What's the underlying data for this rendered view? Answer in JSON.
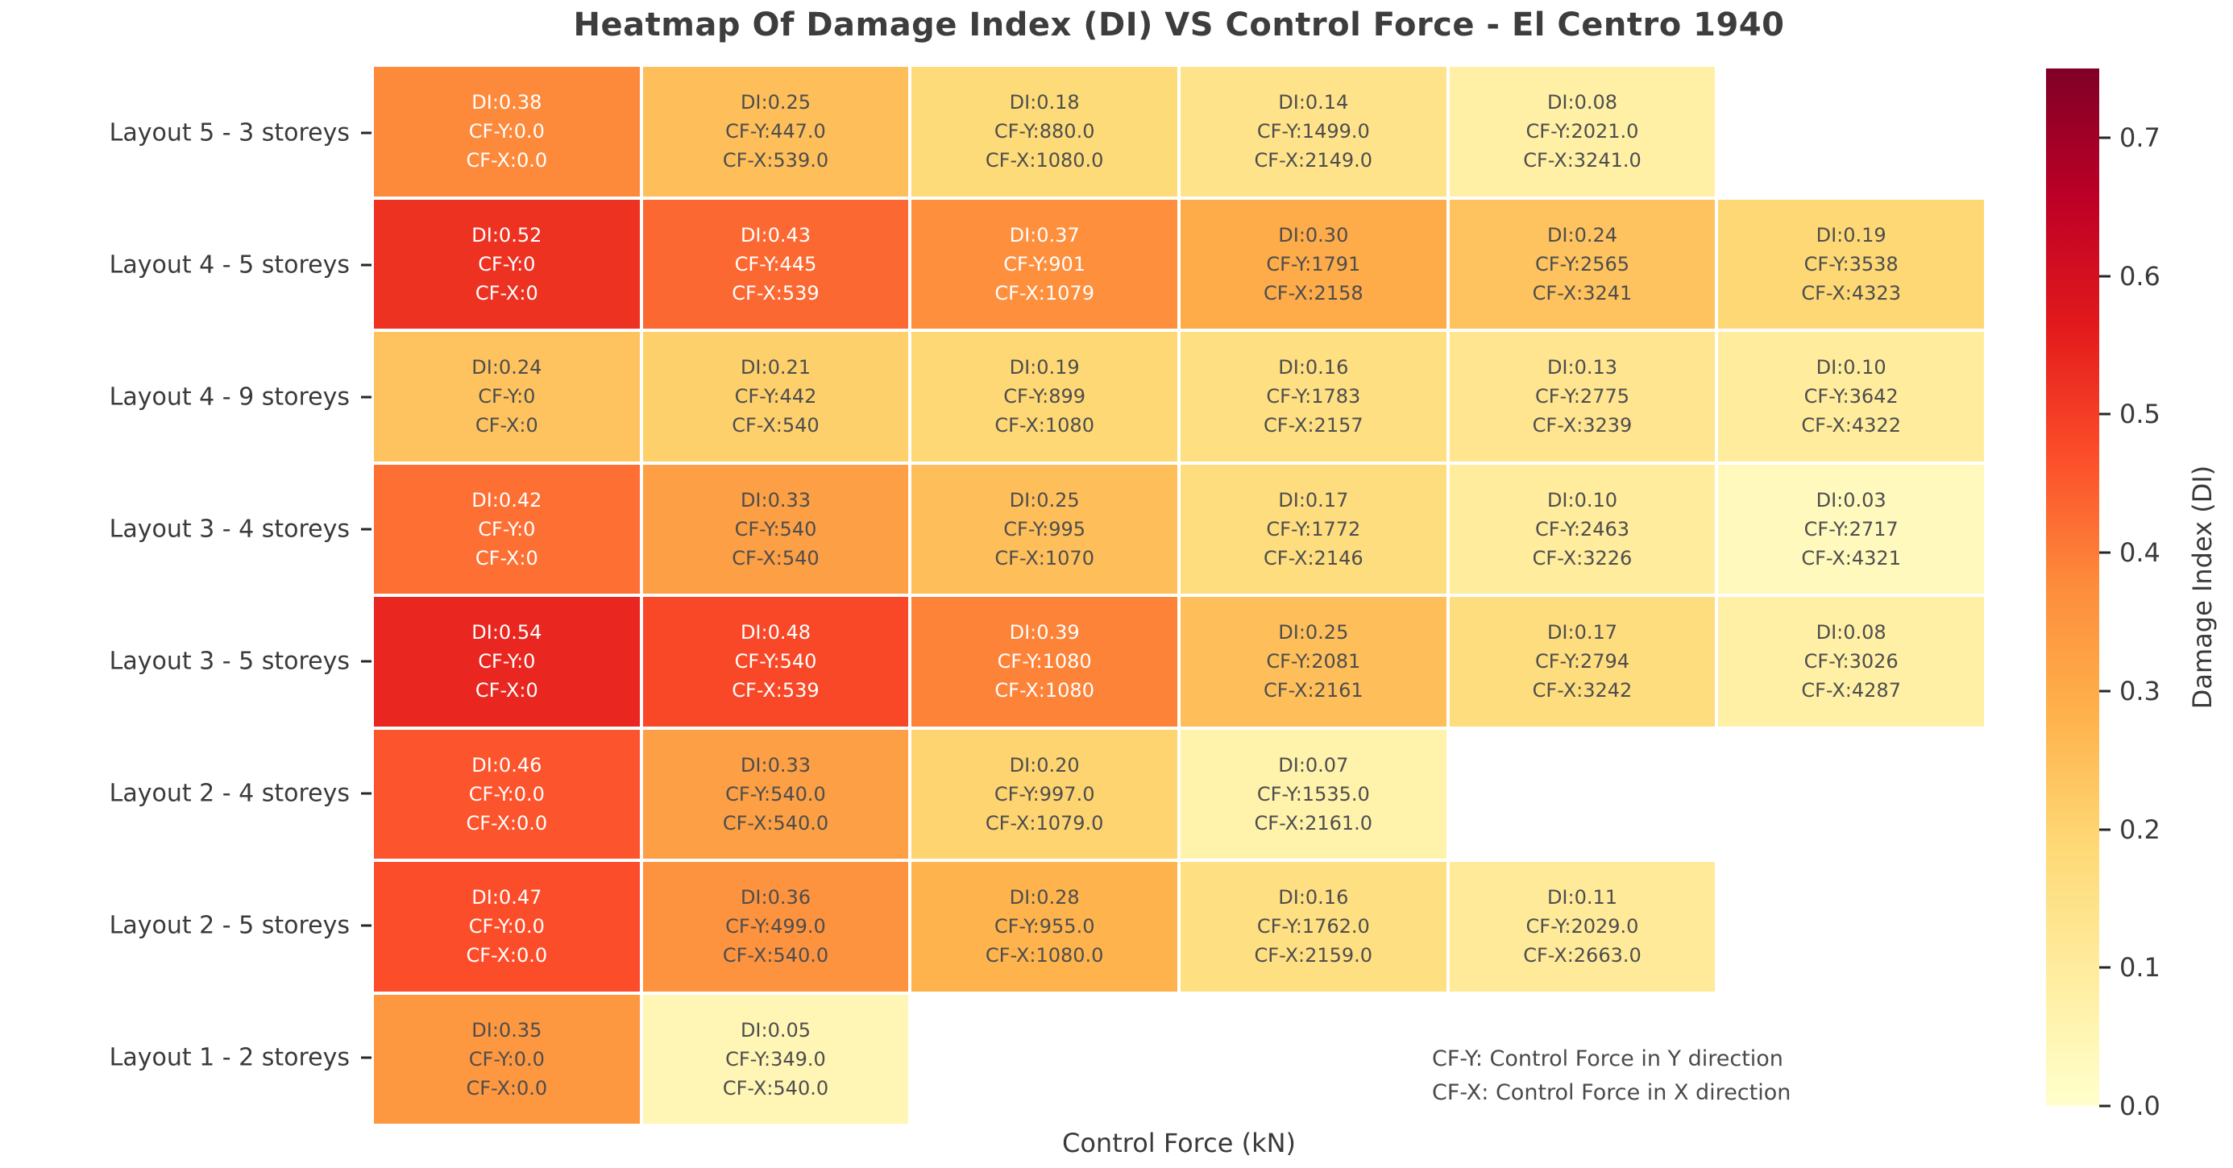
{
  "title": "Heatmap Of Damage Index (DI) VS Control Force - El Centro 1940",
  "axes": {
    "xlabel": "Control Force (kN)"
  },
  "annotation": {
    "lines": [
      "CF-Y: Control Force in Y direction",
      "CF-X: Control Force in X direction"
    ]
  },
  "colorbar": {
    "label": "Damage Index (DI)",
    "tick_labels": [
      "0.7",
      "0.6",
      "0.5",
      "0.4",
      "0.3",
      "0.2",
      "0.1",
      "0.0"
    ],
    "vmin": 0.0,
    "vmax": 0.75,
    "colormap": "YlOrRd",
    "colormap_stops": [
      "#ffffcc",
      "#ffeda0",
      "#fed976",
      "#feb24c",
      "#fd8d3c",
      "#fc4e2a",
      "#e31a1c",
      "#bd0026",
      "#800026"
    ]
  },
  "cell_text": {
    "di_prefix": "DI:",
    "cfy_prefix": "CF-Y:",
    "cfx_prefix": "CF-X:"
  },
  "text_colors": {
    "dark": "#4d4d4d",
    "light": "#ffffff",
    "axis": "#3a3a3a"
  },
  "chart_data": {
    "type": "heatmap",
    "title": "Heatmap Of Damage Index (DI) VS Control Force - El Centro 1940",
    "xlabel": "Control Force (kN)",
    "value_label": "Damage Index (DI)",
    "y_categories": [
      "Layout 5 - 3 storeys",
      "Layout 4 - 5 storeys",
      "Layout 4 - 9 storeys",
      "Layout 3 - 4 storeys",
      "Layout 3 - 5 storeys",
      "Layout 2 - 4 storeys",
      "Layout 2 - 5 storeys",
      "Layout 1 - 2 storeys"
    ],
    "rows": [
      {
        "label": "Layout 5 - 3 storeys",
        "cells": [
          {
            "di": "0.38",
            "cf_y": "0.0",
            "cf_x": "0.0"
          },
          {
            "di": "0.25",
            "cf_y": "447.0",
            "cf_x": "539.0"
          },
          {
            "di": "0.18",
            "cf_y": "880.0",
            "cf_x": "1080.0"
          },
          {
            "di": "0.14",
            "cf_y": "1499.0",
            "cf_x": "2149.0"
          },
          {
            "di": "0.08",
            "cf_y": "2021.0",
            "cf_x": "3241.0"
          },
          null
        ]
      },
      {
        "label": "Layout 4 - 5 storeys",
        "cells": [
          {
            "di": "0.52",
            "cf_y": "0",
            "cf_x": "0"
          },
          {
            "di": "0.43",
            "cf_y": "445",
            "cf_x": "539"
          },
          {
            "di": "0.37",
            "cf_y": "901",
            "cf_x": "1079"
          },
          {
            "di": "0.30",
            "cf_y": "1791",
            "cf_x": "2158"
          },
          {
            "di": "0.24",
            "cf_y": "2565",
            "cf_x": "3241"
          },
          {
            "di": "0.19",
            "cf_y": "3538",
            "cf_x": "4323"
          }
        ]
      },
      {
        "label": "Layout 4 - 9 storeys",
        "cells": [
          {
            "di": "0.24",
            "cf_y": "0",
            "cf_x": "0"
          },
          {
            "di": "0.21",
            "cf_y": "442",
            "cf_x": "540"
          },
          {
            "di": "0.19",
            "cf_y": "899",
            "cf_x": "1080"
          },
          {
            "di": "0.16",
            "cf_y": "1783",
            "cf_x": "2157"
          },
          {
            "di": "0.13",
            "cf_y": "2775",
            "cf_x": "3239"
          },
          {
            "di": "0.10",
            "cf_y": "3642",
            "cf_x": "4322"
          }
        ]
      },
      {
        "label": "Layout 3 - 4 storeys",
        "cells": [
          {
            "di": "0.42",
            "cf_y": "0",
            "cf_x": "0"
          },
          {
            "di": "0.33",
            "cf_y": "540",
            "cf_x": "540"
          },
          {
            "di": "0.25",
            "cf_y": "995",
            "cf_x": "1070"
          },
          {
            "di": "0.17",
            "cf_y": "1772",
            "cf_x": "2146"
          },
          {
            "di": "0.10",
            "cf_y": "2463",
            "cf_x": "3226"
          },
          {
            "di": "0.03",
            "cf_y": "2717",
            "cf_x": "4321"
          }
        ]
      },
      {
        "label": "Layout 3 - 5 storeys",
        "cells": [
          {
            "di": "0.54",
            "cf_y": "0",
            "cf_x": "0"
          },
          {
            "di": "0.48",
            "cf_y": "540",
            "cf_x": "539"
          },
          {
            "di": "0.39",
            "cf_y": "1080",
            "cf_x": "1080"
          },
          {
            "di": "0.25",
            "cf_y": "2081",
            "cf_x": "2161"
          },
          {
            "di": "0.17",
            "cf_y": "2794",
            "cf_x": "3242"
          },
          {
            "di": "0.08",
            "cf_y": "3026",
            "cf_x": "4287"
          }
        ]
      },
      {
        "label": "Layout 2 - 4 storeys",
        "cells": [
          {
            "di": "0.46",
            "cf_y": "0.0",
            "cf_x": "0.0"
          },
          {
            "di": "0.33",
            "cf_y": "540.0",
            "cf_x": "540.0"
          },
          {
            "di": "0.20",
            "cf_y": "997.0",
            "cf_x": "1079.0"
          },
          {
            "di": "0.07",
            "cf_y": "1535.0",
            "cf_x": "2161.0"
          },
          null,
          null
        ]
      },
      {
        "label": "Layout 2 - 5 storeys",
        "cells": [
          {
            "di": "0.47",
            "cf_y": "0.0",
            "cf_x": "0.0"
          },
          {
            "di": "0.36",
            "cf_y": "499.0",
            "cf_x": "540.0"
          },
          {
            "di": "0.28",
            "cf_y": "955.0",
            "cf_x": "1080.0"
          },
          {
            "di": "0.16",
            "cf_y": "1762.0",
            "cf_x": "2159.0"
          },
          {
            "di": "0.11",
            "cf_y": "2029.0",
            "cf_x": "2663.0"
          },
          null
        ]
      },
      {
        "label": "Layout 1 - 2 storeys",
        "cells": [
          {
            "di": "0.35",
            "cf_y": "0.0",
            "cf_x": "0.0"
          },
          {
            "di": "0.05",
            "cf_y": "349.0",
            "cf_x": "540.0"
          },
          null,
          null,
          null,
          null
        ]
      }
    ]
  }
}
